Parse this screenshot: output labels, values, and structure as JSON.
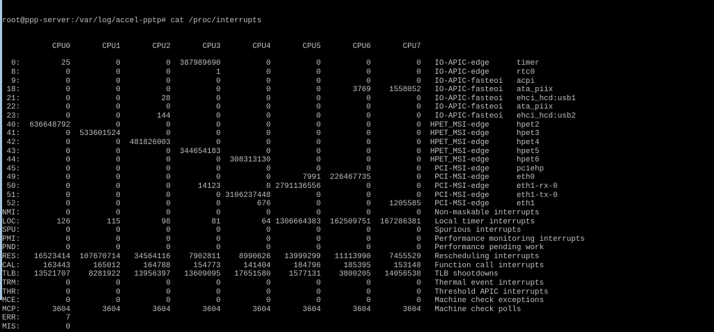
{
  "terminal": {
    "prompt": "root@ppp-server:/var/log/accel-pptp# cat /proc/interrupts",
    "colors": {
      "background": "#000000",
      "text": "#c0c0c0",
      "left_edge": "#a9c8e6"
    },
    "headers": [
      "CPU0",
      "CPU1",
      "CPU2",
      "CPU3",
      "CPU4",
      "CPU5",
      "CPU6",
      "CPU7"
    ],
    "rows": [
      {
        "label": "0:",
        "values": [
          "25",
          "0",
          "0",
          "387989690",
          "0",
          "0",
          "0",
          "0"
        ],
        "chip": "IO-APIC-edge",
        "name": "timer"
      },
      {
        "label": "8:",
        "values": [
          "0",
          "0",
          "0",
          "1",
          "0",
          "0",
          "0",
          "0"
        ],
        "chip": "IO-APIC-edge",
        "name": "rtc0"
      },
      {
        "label": "9:",
        "values": [
          "0",
          "0",
          "0",
          "0",
          "0",
          "0",
          "0",
          "0"
        ],
        "chip": "IO-APIC-fasteoi",
        "name": "acpi"
      },
      {
        "label": "18:",
        "values": [
          "0",
          "0",
          "0",
          "0",
          "0",
          "0",
          "3769",
          "1558052"
        ],
        "chip": "IO-APIC-fasteoi",
        "name": "ata_piix"
      },
      {
        "label": "21:",
        "values": [
          "0",
          "0",
          "28",
          "0",
          "0",
          "0",
          "0",
          "0"
        ],
        "chip": "IO-APIC-fasteoi",
        "name": "ehci_hcd:usb1"
      },
      {
        "label": "22:",
        "values": [
          "0",
          "0",
          "0",
          "0",
          "0",
          "0",
          "0",
          "0"
        ],
        "chip": "IO-APIC-fasteoi",
        "name": "ata_piix"
      },
      {
        "label": "23:",
        "values": [
          "0",
          "0",
          "144",
          "0",
          "0",
          "0",
          "0",
          "0"
        ],
        "chip": "IO-APIC-fasteoi",
        "name": "ehci_hcd:usb2"
      },
      {
        "label": "40:",
        "values": [
          "636648792",
          "0",
          "0",
          "0",
          "0",
          "0",
          "0",
          "0"
        ],
        "chip": "HPET_MSI-edge",
        "name": "hpet2"
      },
      {
        "label": "41:",
        "values": [
          "0",
          "533601524",
          "0",
          "0",
          "0",
          "0",
          "0",
          "0"
        ],
        "chip": "HPET_MSI-edge",
        "name": "hpet3"
      },
      {
        "label": "42:",
        "values": [
          "0",
          "0",
          "481826003",
          "0",
          "0",
          "0",
          "0",
          "0"
        ],
        "chip": "HPET_MSI-edge",
        "name": "hpet4"
      },
      {
        "label": "43:",
        "values": [
          "0",
          "0",
          "0",
          "344654183",
          "0",
          "0",
          "0",
          "0"
        ],
        "chip": "HPET_MSI-edge",
        "name": "hpet5"
      },
      {
        "label": "44:",
        "values": [
          "0",
          "0",
          "0",
          "0",
          "308313130",
          "0",
          "0",
          "0"
        ],
        "chip": "HPET_MSI-edge",
        "name": "hpet6"
      },
      {
        "label": "45:",
        "values": [
          "0",
          "0",
          "0",
          "0",
          "0",
          "0",
          "0",
          "0"
        ],
        "chip": "PCI-MSI-edge",
        "name": "pciehp"
      },
      {
        "label": "49:",
        "values": [
          "0",
          "0",
          "0",
          "0",
          "0",
          "7991",
          "226467735",
          "0"
        ],
        "chip": "PCI-MSI-edge",
        "name": "eth0"
      },
      {
        "label": "50:",
        "values": [
          "0",
          "0",
          "0",
          "14123",
          "0",
          "2791136556",
          "0",
          "0"
        ],
        "chip": "PCI-MSI-edge",
        "name": "eth1-rx-0"
      },
      {
        "label": "51:",
        "values": [
          "0",
          "0",
          "0",
          "0",
          "3106237448",
          "0",
          "0",
          "0"
        ],
        "chip": "PCI-MSI-edge",
        "name": "eth1-tx-0"
      },
      {
        "label": "52:",
        "values": [
          "0",
          "0",
          "0",
          "0",
          "676",
          "0",
          "0",
          "1205585"
        ],
        "chip": "PCI-MSI-edge",
        "name": "eth1"
      },
      {
        "label": "NMI:",
        "values": [
          "0",
          "0",
          "0",
          "0",
          "0",
          "0",
          "0",
          "0"
        ],
        "desc": "Non-maskable interrupts"
      },
      {
        "label": "LOC:",
        "values": [
          "126",
          "115",
          "98",
          "81",
          "64",
          "1306664383",
          "162509751",
          "167286381"
        ],
        "desc": "Local timer interrupts"
      },
      {
        "label": "SPU:",
        "values": [
          "0",
          "0",
          "0",
          "0",
          "0",
          "0",
          "0",
          "0"
        ],
        "desc": "Spurious interrupts"
      },
      {
        "label": "PMI:",
        "values": [
          "0",
          "0",
          "0",
          "0",
          "0",
          "0",
          "0",
          "0"
        ],
        "desc": "Performance monitoring interrupts"
      },
      {
        "label": "PND:",
        "values": [
          "0",
          "0",
          "0",
          "0",
          "0",
          "0",
          "0",
          "0"
        ],
        "desc": "Performance pending work"
      },
      {
        "label": "RES:",
        "values": [
          "16523414",
          "107670714",
          "34564116",
          "7902811",
          "8990626",
          "13999299",
          "11113990",
          "7455529"
        ],
        "desc": "Rescheduling interrupts"
      },
      {
        "label": "CAL:",
        "values": [
          "163443",
          "165012",
          "164788",
          "154773",
          "141404",
          "184796",
          "185395",
          "153148"
        ],
        "desc": "Function call interrupts"
      },
      {
        "label": "TLB:",
        "values": [
          "13521707",
          "8281922",
          "13956397",
          "13609095",
          "17651580",
          "1577131",
          "3800205",
          "14056538"
        ],
        "desc": "TLB shootdowns"
      },
      {
        "label": "TRM:",
        "values": [
          "0",
          "0",
          "0",
          "0",
          "0",
          "0",
          "0",
          "0"
        ],
        "desc": "Thermal event interrupts"
      },
      {
        "label": "THR:",
        "values": [
          "0",
          "0",
          "0",
          "0",
          "0",
          "0",
          "0",
          "0"
        ],
        "desc": "Threshold APIC interrupts"
      },
      {
        "label": "MCE:",
        "values": [
          "0",
          "0",
          "0",
          "0",
          "0",
          "0",
          "0",
          "0"
        ],
        "desc": "Machine check exceptions"
      },
      {
        "label": "MCP:",
        "values": [
          "3604",
          "3604",
          "3604",
          "3604",
          "3604",
          "3604",
          "3604",
          "3604"
        ],
        "desc": "Machine check polls"
      },
      {
        "label": "ERR:",
        "values": [
          "7"
        ]
      },
      {
        "label": "MIS:",
        "values": [
          "0"
        ]
      }
    ]
  }
}
